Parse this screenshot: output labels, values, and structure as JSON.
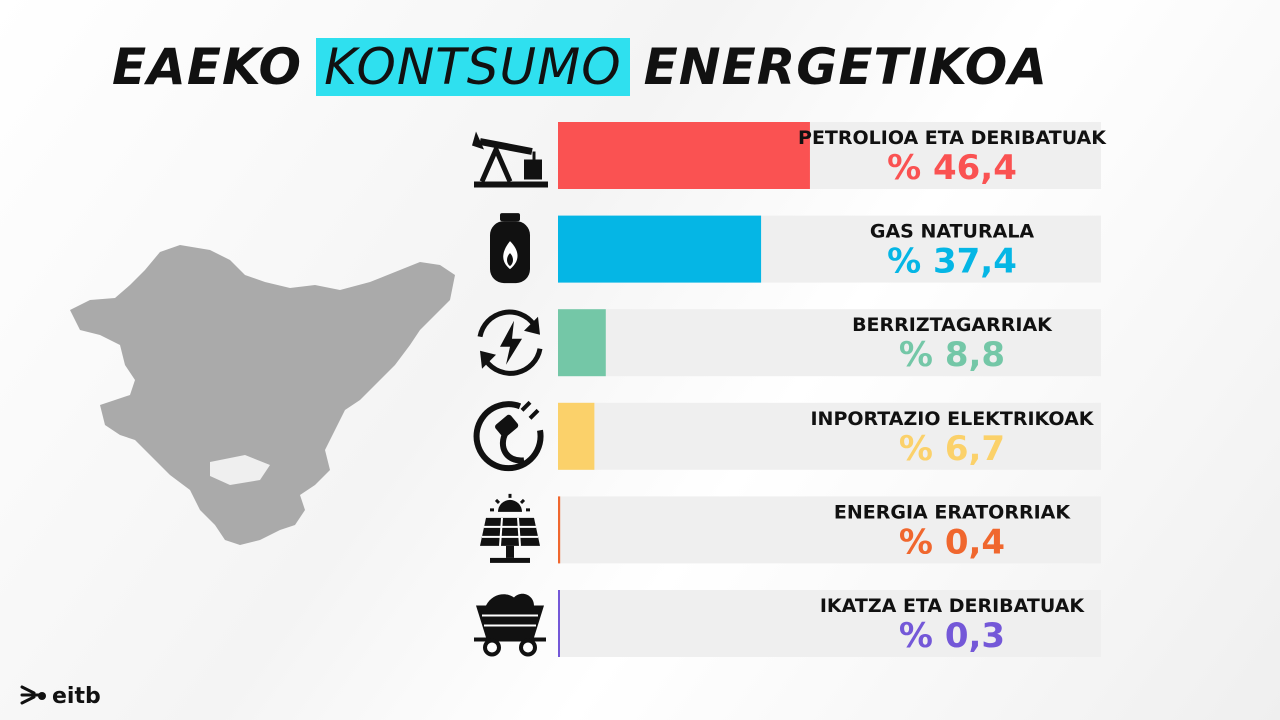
{
  "title": {
    "part1": "EAEKO",
    "part2": "KONTSUMO",
    "part3": "ENERGETIKOA"
  },
  "colors": {
    "highlight": "#2fe0ef",
    "track": "#efefef"
  },
  "chart_data": {
    "type": "bar",
    "orientation": "horizontal",
    "xlim": [
      0,
      100
    ],
    "categories": [
      "PETROLIOA ETA DERIBATUAK",
      "GAS NATURALA",
      "BERRIZTAGARRIAK",
      "INPORTAZIO ELEKTRIKOAK",
      "ENERGIA ERATORRIAK",
      "IKATZA ETA DERIBATUAK"
    ],
    "values": [
      46.4,
      37.4,
      8.8,
      6.7,
      0.4,
      0.3
    ],
    "value_labels": [
      "% 46,4",
      "% 37,4",
      "% 8,8",
      "% 6,7",
      "% 0,4",
      "% 0,3"
    ],
    "colors": [
      "#fa5252",
      "#05b6e5",
      "#74c7a7",
      "#fbd16a",
      "#f0672e",
      "#7458d8"
    ],
    "icons": [
      "oil-pump-icon",
      "gas-cylinder-icon",
      "renewable-cycle-icon",
      "electric-plug-icon",
      "solar-panel-icon",
      "coal-cart-icon"
    ]
  },
  "logo": {
    "text": "eitb"
  }
}
